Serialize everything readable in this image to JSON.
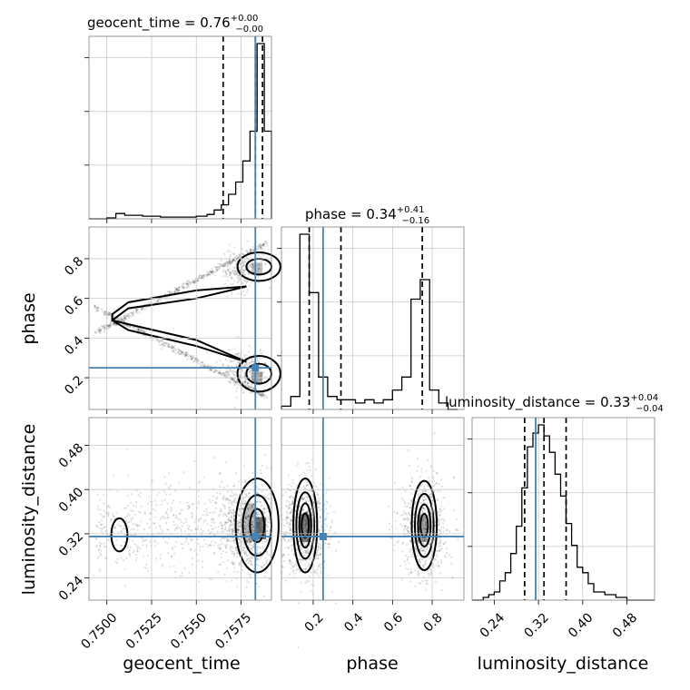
{
  "chart_data": {
    "type": "corner",
    "parameters": [
      "geocent_time",
      "phase",
      "luminosity_distance"
    ],
    "colors": {
      "truth": "#4682b4",
      "grid": "#c8c8c8",
      "frame": "#808080"
    },
    "grid": true,
    "truths": {
      "geocent_time": 0.7583,
      "phase": 0.25,
      "luminosity_distance": 0.315
    },
    "titles": [
      {
        "label": "geocent_time",
        "median": "0.76",
        "plus": "+0.00",
        "minus": "−0.00"
      },
      {
        "label": "phase",
        "median": "0.34",
        "plus": "+0.41",
        "minus": "−0.16"
      },
      {
        "label": "luminosity_distance",
        "median": "0.33",
        "plus": "+0.04",
        "minus": "−0.04"
      }
    ],
    "axis_labels": {
      "x": [
        "geocent_time",
        "phase",
        "luminosity_distance"
      ],
      "y_phase": "phase",
      "y_luminosity_distance": "luminosity_distance"
    },
    "ranges": {
      "geocent_time": [
        0.749,
        0.7592
      ],
      "phase": [
        0.04,
        0.96
      ],
      "luminosity_distance": [
        0.2,
        0.53
      ]
    },
    "ticks": {
      "geocent_time": {
        "values": [
          0.75,
          0.7525,
          0.755,
          0.7575
        ],
        "labels": [
          "0.7500",
          "0.7525",
          "0.7550",
          "0.7575"
        ]
      },
      "phase": {
        "values": [
          0.2,
          0.4,
          0.6,
          0.8
        ],
        "labels": [
          "0.2",
          "0.4",
          "0.6",
          "0.8"
        ]
      },
      "luminosity_distance": {
        "values": [
          0.24,
          0.32,
          0.4,
          0.48
        ],
        "labels": [
          "0.24",
          "0.32",
          "0.40",
          "0.48"
        ]
      }
    },
    "histograms": {
      "geocent_time": {
        "edges": [
          0.749,
          0.75,
          0.7505,
          0.751,
          0.752,
          0.753,
          0.754,
          0.755,
          0.7556,
          0.756,
          0.7564,
          0.7568,
          0.7572,
          0.7576,
          0.758,
          0.7584,
          0.7588,
          0.7592
        ],
        "counts": [
          0,
          1,
          6,
          4,
          3,
          2,
          2,
          3,
          5,
          10,
          16,
          28,
          42,
          66,
          100,
          200,
          100
        ],
        "quantiles": [
          0.7565,
          0.7583,
          0.7587
        ]
      },
      "phase": {
        "edges": [
          0.04,
          0.087,
          0.133,
          0.18,
          0.227,
          0.273,
          0.32,
          0.367,
          0.413,
          0.46,
          0.507,
          0.553,
          0.6,
          0.647,
          0.693,
          0.74,
          0.787,
          0.833,
          0.88,
          0.927
        ],
        "counts": [
          1,
          4,
          54,
          36,
          10,
          4,
          3,
          3,
          2,
          3,
          2,
          3,
          6,
          10,
          34,
          40,
          6,
          2,
          0
        ],
        "quantiles": [
          0.18,
          0.34,
          0.75
        ]
      },
      "luminosity_distance": {
        "edges": [
          0.2,
          0.22,
          0.23,
          0.24,
          0.25,
          0.26,
          0.27,
          0.28,
          0.29,
          0.3,
          0.31,
          0.32,
          0.33,
          0.34,
          0.35,
          0.36,
          0.37,
          0.38,
          0.39,
          0.4,
          0.41,
          0.42,
          0.44,
          0.46,
          0.48,
          0.5,
          0.53
        ],
        "counts": [
          0,
          1,
          2,
          3,
          7,
          10,
          17,
          27,
          41,
          56,
          61,
          64,
          60,
          54,
          46,
          38,
          28,
          20,
          12,
          10,
          6,
          3,
          2,
          1,
          0,
          0
        ],
        "quantiles": [
          0.295,
          0.33,
          0.37
        ]
      }
    }
  }
}
